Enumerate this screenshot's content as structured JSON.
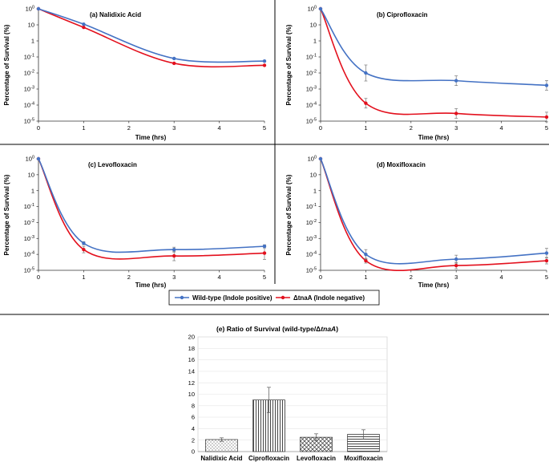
{
  "legend": {
    "wt_label": "Wild-type (Indole positive)",
    "mut_label": "ΔtnaA (Indole negative)"
  },
  "colors": {
    "wt": "#4472C4",
    "mut": "#E3101D",
    "axis": "#333333",
    "grid": "#bfbfbf"
  },
  "chart_data": [
    {
      "type": "line",
      "title": "(a)  Nalidixic Acid",
      "xlabel": "Time (hrs)",
      "ylabel": "Percentage of Survival (%)",
      "xlim": [
        0,
        5
      ],
      "x_ticks": [
        "0",
        "1",
        "2",
        "3",
        "4",
        "5"
      ],
      "yscale": "log",
      "ylim_exp": [
        -5,
        2
      ],
      "y_ticks": [
        "100",
        "10",
        "1",
        "10-1",
        "10-2",
        "10-3",
        "10-4",
        "10-5"
      ],
      "series": [
        {
          "name": "Wild-type (Indole positive)",
          "x": [
            0,
            1,
            3,
            5
          ],
          "y": [
            100,
            11,
            0.08,
            0.055
          ],
          "err": [
            0,
            0,
            0,
            0
          ]
        },
        {
          "name": "ΔtnaA (Indole negative)",
          "x": [
            0,
            1,
            3,
            5
          ],
          "y": [
            100,
            7,
            0.04,
            0.03
          ],
          "err": [
            0,
            0,
            0,
            0
          ]
        }
      ]
    },
    {
      "type": "line",
      "title": "(b)   Ciprofloxacin",
      "xlabel": "Time (hrs)",
      "ylabel": "Percentage of Survival (%)",
      "xlim": [
        0,
        5
      ],
      "x_ticks": [
        "0",
        "1",
        "2",
        "3",
        "4",
        "5"
      ],
      "yscale": "log",
      "ylim_exp": [
        -5,
        2
      ],
      "y_ticks": [
        "100",
        "10",
        "1",
        "10-1",
        "10-2",
        "10-3",
        "10-4",
        "10-5"
      ],
      "series": [
        {
          "name": "Wild-type (Indole positive)",
          "x": [
            0,
            1,
            3,
            5
          ],
          "y": [
            100,
            0.01,
            0.0033,
            0.0017
          ],
          "err": [
            0,
            0.5,
            0.3,
            0.3
          ]
        },
        {
          "name": "ΔtnaA (Indole negative)",
          "x": [
            0,
            1,
            3,
            5
          ],
          "y": [
            100,
            0.00013,
            3e-05,
            1.8e-05
          ],
          "err": [
            0,
            0.3,
            0.3,
            0.3
          ]
        }
      ]
    },
    {
      "type": "line",
      "title": "(c)    Levofloxacin",
      "xlabel": "Time (hrs)",
      "ylabel": "Percentage of Survival (%)",
      "xlim": [
        0,
        5
      ],
      "x_ticks": [
        "0",
        "1",
        "2",
        "3",
        "4",
        "5"
      ],
      "yscale": "log",
      "ylim_exp": [
        -5,
        2
      ],
      "y_ticks": [
        "100",
        "10",
        "1",
        "10-1",
        "10-2",
        "10-3",
        "10-4",
        "10-5"
      ],
      "series": [
        {
          "name": "Wild-type (Indole positive)",
          "x": [
            0,
            1,
            3,
            5
          ],
          "y": [
            100,
            0.0005,
            0.0002,
            0.00032
          ],
          "err": [
            0,
            0.1,
            0.15,
            0.1
          ]
        },
        {
          "name": "ΔtnaA (Indole negative)",
          "x": [
            0,
            1,
            3,
            5
          ],
          "y": [
            100,
            0.0002,
            8e-05,
            0.00012
          ],
          "err": [
            0,
            0.2,
            0.3,
            0.4
          ]
        }
      ]
    },
    {
      "type": "line",
      "title": "(d)   Moxifloxacin",
      "xlabel": "Time (hrs)",
      "ylabel": "Percentage of Survival (%)",
      "xlim": [
        0,
        5
      ],
      "x_ticks": [
        "0",
        "1",
        "2",
        "3",
        "4",
        "5"
      ],
      "yscale": "log",
      "ylim_exp": [
        -5,
        2
      ],
      "y_ticks": [
        "100",
        "10",
        "1",
        "10-1",
        "10-2",
        "10-3",
        "10-4",
        "10-5"
      ],
      "series": [
        {
          "name": "Wild-type (Indole positive)",
          "x": [
            0,
            1,
            3,
            5
          ],
          "y": [
            100,
            0.0001,
            5e-05,
            0.00012
          ],
          "err": [
            0,
            0.3,
            0.25,
            0.3
          ]
        },
        {
          "name": "ΔtnaA (Indole negative)",
          "x": [
            0,
            1,
            3,
            5
          ],
          "y": [
            100,
            4e-05,
            2e-05,
            4e-05
          ],
          "err": [
            0,
            0.15,
            0.2,
            0.2
          ]
        }
      ]
    },
    {
      "type": "bar",
      "title_prefix": "(e)  Ratio of Survival (wild-type/Δ",
      "title_italic": "tnaA",
      "title_suffix": ")",
      "categories": [
        "Nalidixic Acid",
        "Ciprofloxacin",
        "Levofloxacin",
        "Moxifloxacin"
      ],
      "values": [
        2.1,
        9.0,
        2.5,
        3.0
      ],
      "errors": [
        0.3,
        2.2,
        0.6,
        0.8
      ],
      "patterns": [
        "dots",
        "vlines",
        "cross",
        "hlines"
      ],
      "ylim": [
        0,
        20
      ],
      "y_ticks": [
        "0",
        "2",
        "4",
        "6",
        "8",
        "10",
        "12",
        "14",
        "16",
        "18",
        "20"
      ]
    }
  ]
}
